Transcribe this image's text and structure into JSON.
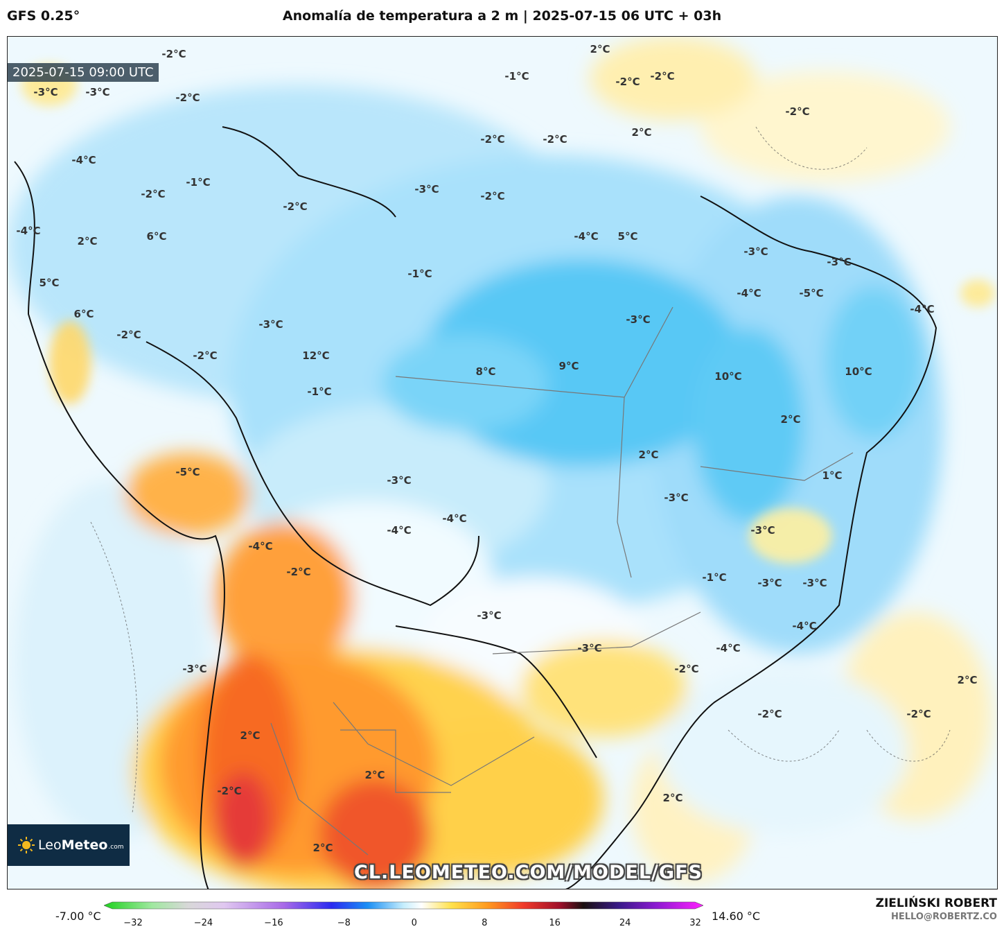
{
  "header": {
    "model": "GFS 0.25°",
    "title": "Anomalía de temperatura a 2 m | 2025-07-15 06 UTC + 03h"
  },
  "map": {
    "valid_time": "2025-07-15 09:00 UTC",
    "watermark": "CL.LEOMETEO.COM/MODEL/GFS",
    "logo": {
      "brand_light": "Leo",
      "brand_bold": "Meteo",
      "brand_suffix": ".com"
    },
    "labels": [
      {
        "text": "-2°C"
      },
      {
        "text": "-3°C"
      },
      {
        "text": "-2°C"
      },
      {
        "text": "-3°C"
      },
      {
        "text": "2°C"
      },
      {
        "text": "-1°C"
      },
      {
        "text": "-2°C"
      },
      {
        "text": "-2°C"
      },
      {
        "text": "-4°C"
      },
      {
        "text": "-4°C"
      },
      {
        "text": "2°C"
      },
      {
        "text": "-2°C"
      },
      {
        "text": "-2°C"
      },
      {
        "text": "-2°C"
      },
      {
        "text": "-3°C"
      },
      {
        "text": "-2°C"
      },
      {
        "text": "-4°C"
      },
      {
        "text": "-2°C"
      },
      {
        "text": "-3°C"
      },
      {
        "text": "-3°C"
      },
      {
        "text": "-4°C"
      },
      {
        "text": "-5°C"
      },
      {
        "text": "-4°C"
      },
      {
        "text": "-2°C"
      },
      {
        "text": "-3°C"
      },
      {
        "text": "5°C"
      },
      {
        "text": "-3°C"
      },
      {
        "text": "-2°C"
      },
      {
        "text": "-2°C"
      },
      {
        "text": "6°C"
      },
      {
        "text": "5°C"
      },
      {
        "text": "-1°C"
      },
      {
        "text": "2°C"
      },
      {
        "text": "6°C"
      },
      {
        "text": "-1°C"
      },
      {
        "text": "12°C"
      },
      {
        "text": "8°C"
      },
      {
        "text": "9°C"
      },
      {
        "text": "10°C"
      },
      {
        "text": "10°C"
      },
      {
        "text": "-1°C"
      },
      {
        "text": "2°C"
      },
      {
        "text": "2°C"
      },
      {
        "text": "1°C"
      },
      {
        "text": "-3°C"
      },
      {
        "text": "-3°C"
      },
      {
        "text": "-4°C"
      },
      {
        "text": "-4°C"
      },
      {
        "text": "-3°C"
      },
      {
        "text": "-1°C"
      },
      {
        "text": "-5°C"
      },
      {
        "text": "-4°C"
      },
      {
        "text": "-2°C"
      },
      {
        "text": "-3°C"
      },
      {
        "text": "-3°C"
      },
      {
        "text": "-3°C"
      },
      {
        "text": "-3°C"
      },
      {
        "text": "-4°C"
      },
      {
        "text": "-4°C"
      },
      {
        "text": "-2°C"
      },
      {
        "text": "-3°C"
      },
      {
        "text": "-2°C"
      },
      {
        "text": "-2°C"
      },
      {
        "text": "2°C"
      },
      {
        "text": "2°C"
      },
      {
        "text": "2°C"
      },
      {
        "text": "2°C"
      },
      {
        "text": "-2°C"
      },
      {
        "text": "2°C"
      }
    ]
  },
  "colorbar": {
    "min_label": "-7.00 °C",
    "max_label": "14.60 °C",
    "ticks": [
      "−32",
      "−24",
      "−16",
      "−8",
      "0",
      "8",
      "16",
      "24",
      "32"
    ]
  },
  "footer": {
    "author": "ZIELIŃSKI ROBERT",
    "email": "HELLO@ROBERTZ.CO"
  }
}
